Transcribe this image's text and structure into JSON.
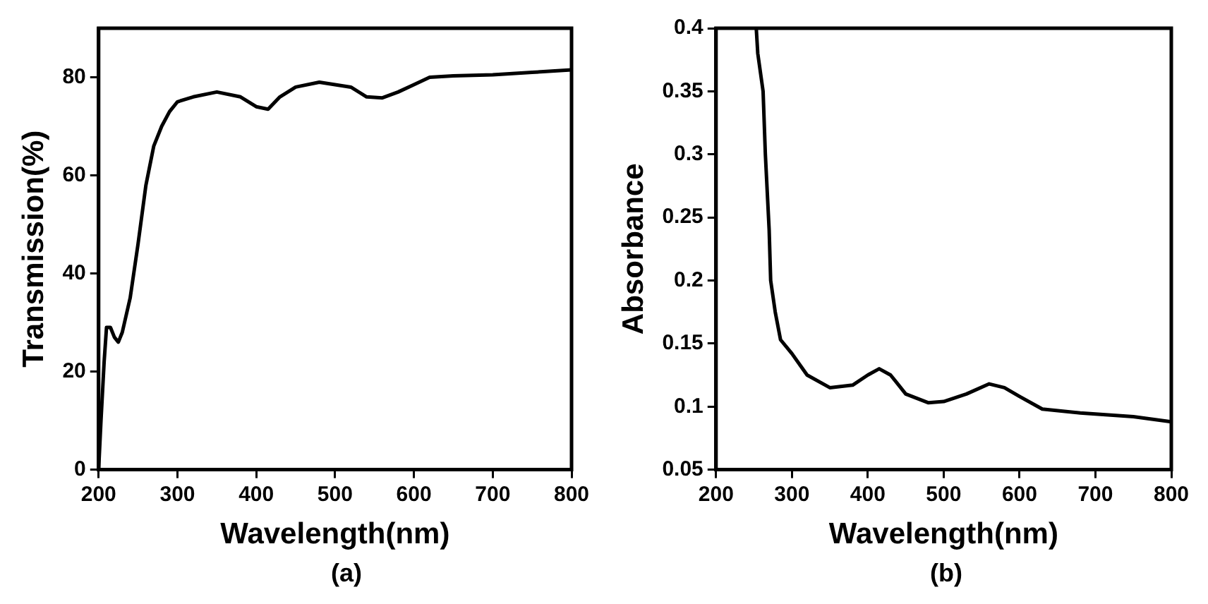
{
  "chart_data": [
    {
      "type": "line",
      "xlabel": "Wavelength(nm)",
      "ylabel": "Transmission(%)",
      "annotations": [
        "(a)"
      ],
      "xlim": [
        200,
        800
      ],
      "xticks": [
        200,
        300,
        400,
        500,
        600,
        700,
        800
      ],
      "ylim": [
        0,
        90
      ],
      "yticks": [
        0,
        20,
        40,
        60,
        80
      ],
      "grid": false,
      "legend": false,
      "marker": "none",
      "line_style": "solid",
      "series": [
        {
          "color": "#000000",
          "x": [
            200,
            203,
            207,
            210,
            215,
            220,
            225,
            230,
            240,
            250,
            260,
            270,
            280,
            290,
            300,
            320,
            350,
            380,
            400,
            415,
            430,
            450,
            480,
            500,
            520,
            540,
            560,
            580,
            600,
            620,
            650,
            700,
            750,
            800
          ],
          "values": [
            0,
            10,
            22,
            29,
            29,
            27,
            26,
            28,
            35,
            46,
            58,
            66,
            70,
            73,
            75,
            76,
            77,
            76,
            74,
            73.5,
            76,
            78,
            79,
            78.5,
            78,
            76,
            75.8,
            77,
            78.5,
            80,
            80.3,
            80.5,
            81,
            81.5
          ]
        }
      ]
    },
    {
      "type": "line",
      "xlabel": "Wavelength(nm)",
      "ylabel": "Absorbance",
      "annotations": [
        "(b)"
      ],
      "xlim": [
        200,
        800
      ],
      "xticks": [
        200,
        300,
        400,
        500,
        600,
        700,
        800
      ],
      "ylim": [
        0.05,
        0.4
      ],
      "yticks": [
        0.05,
        0.1,
        0.15,
        0.2,
        0.25,
        0.3,
        0.35,
        0.4
      ],
      "grid": false,
      "legend": false,
      "marker": "none",
      "line_style": "solid",
      "series": [
        {
          "color": "#000000",
          "x": [
            253,
            255,
            262,
            265,
            270,
            272,
            278,
            285,
            300,
            320,
            350,
            380,
            400,
            415,
            430,
            450,
            480,
            500,
            530,
            560,
            580,
            600,
            630,
            680,
            750,
            800
          ],
          "values": [
            0.4,
            0.38,
            0.35,
            0.3,
            0.24,
            0.2,
            0.175,
            0.153,
            0.142,
            0.125,
            0.115,
            0.117,
            0.125,
            0.13,
            0.125,
            0.11,
            0.103,
            0.104,
            0.11,
            0.118,
            0.115,
            0.108,
            0.098,
            0.095,
            0.092,
            0.088
          ]
        }
      ]
    }
  ]
}
